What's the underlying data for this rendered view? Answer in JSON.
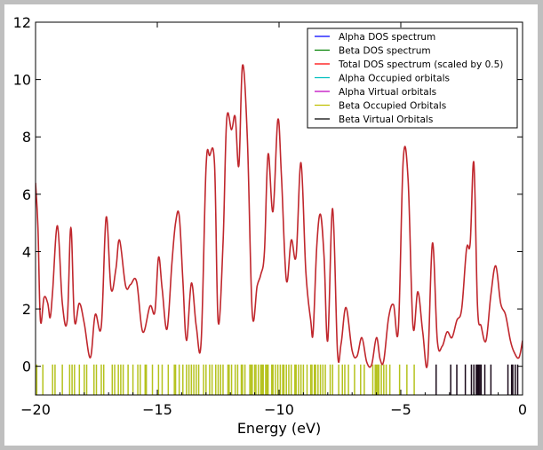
{
  "colors": {
    "window_background": "#bfbfbf",
    "figure_background": "#ffffff",
    "total_dos": "#c0272d",
    "beta_occupied": "#b5c21d",
    "beta_virtual": "#1a0a1a"
  },
  "chart_data": {
    "type": "line",
    "title": "",
    "xlabel": "Energy (eV)",
    "ylabel": "",
    "xlim": [
      -20,
      0
    ],
    "ylim": [
      -1,
      12
    ],
    "xticks": [
      -20,
      -15,
      -10,
      -5,
      0
    ],
    "xtick_labels": [
      "−20",
      "−15",
      "−10",
      "−5",
      "0"
    ],
    "yticks": [
      0,
      2,
      4,
      6,
      8,
      10,
      12
    ],
    "ytick_labels": [
      "0",
      "2",
      "4",
      "6",
      "8",
      "10",
      "12"
    ],
    "grid": false,
    "legend_position": "top-right",
    "legend": [
      {
        "label": "Alpha DOS spectrum",
        "color": "#0000ff"
      },
      {
        "label": "Beta DOS spectrum",
        "color": "#008000"
      },
      {
        "label": "Total DOS spectrum (scaled by 0.5)",
        "color": "#ff0000"
      },
      {
        "label": "Alpha Occupied orbitals",
        "color": "#00bfbf"
      },
      {
        "label": "Alpha Virtual orbitals",
        "color": "#bf00bf"
      },
      {
        "label": "Beta Occupied Orbitals",
        "color": "#bfbf00"
      },
      {
        "label": "Beta Virtual Orbitals",
        "color": "#000000"
      }
    ],
    "series": [
      {
        "name": "Total DOS spectrum (scaled by 0.5)",
        "color": "#c0272d",
        "x": [
          -20.0,
          -19.9,
          -19.8,
          -19.65,
          -19.5,
          -19.4,
          -19.3,
          -19.1,
          -18.9,
          -18.7,
          -18.55,
          -18.4,
          -18.2,
          -18.0,
          -17.75,
          -17.55,
          -17.3,
          -17.1,
          -16.9,
          -16.7,
          -16.55,
          -16.3,
          -16.1,
          -15.85,
          -15.6,
          -15.3,
          -15.1,
          -14.95,
          -14.8,
          -14.6,
          -14.4,
          -14.25,
          -14.1,
          -13.95,
          -13.8,
          -13.6,
          -13.4,
          -13.2,
          -13.0,
          -12.85,
          -12.65,
          -12.5,
          -12.3,
          -12.15,
          -11.95,
          -11.8,
          -11.65,
          -11.5,
          -11.3,
          -11.1,
          -10.9,
          -10.75,
          -10.6,
          -10.45,
          -10.25,
          -10.05,
          -9.9,
          -9.7,
          -9.5,
          -9.3,
          -9.1,
          -8.9,
          -8.7,
          -8.6,
          -8.45,
          -8.3,
          -8.15,
          -8.0,
          -7.8,
          -7.6,
          -7.45,
          -7.25,
          -7.0,
          -6.8,
          -6.6,
          -6.4,
          -6.2,
          -6.0,
          -5.85,
          -5.7,
          -5.5,
          -5.3,
          -5.1,
          -4.9,
          -4.7,
          -4.5,
          -4.3,
          -4.1,
          -3.9,
          -3.7,
          -3.5,
          -3.3,
          -3.1,
          -2.9,
          -2.7,
          -2.5,
          -2.3,
          -2.15,
          -2.0,
          -1.85,
          -1.7,
          -1.5,
          -1.3,
          -1.1,
          -0.9,
          -0.7,
          -0.5,
          -0.35,
          -0.15,
          0.0
        ],
        "y": [
          6.4,
          4.8,
          1.6,
          2.4,
          2.2,
          1.7,
          2.6,
          4.9,
          2.2,
          1.6,
          4.85,
          1.6,
          2.2,
          1.5,
          0.3,
          1.8,
          1.4,
          5.2,
          2.7,
          3.4,
          4.4,
          2.8,
          2.85,
          2.95,
          1.2,
          2.1,
          1.9,
          3.8,
          2.7,
          1.3,
          3.6,
          5.0,
          5.25,
          3.0,
          0.9,
          2.9,
          1.4,
          0.85,
          6.9,
          7.35,
          7.05,
          1.55,
          4.3,
          8.6,
          8.25,
          8.7,
          7.0,
          10.5,
          7.9,
          1.85,
          2.8,
          3.2,
          4.0,
          7.4,
          5.4,
          8.6,
          6.6,
          3.0,
          4.4,
          3.85,
          7.1,
          3.3,
          1.6,
          1.2,
          4.2,
          5.3,
          3.8,
          0.9,
          5.5,
          0.5,
          0.8,
          2.05,
          0.55,
          0.35,
          1.0,
          0.15,
          0.05,
          1.0,
          0.25,
          0.2,
          1.7,
          2.15,
          1.3,
          7.2,
          6.5,
          1.4,
          2.6,
          1.2,
          0.1,
          4.3,
          0.9,
          0.7,
          1.2,
          1.0,
          1.6,
          2.0,
          4.1,
          4.3,
          7.1,
          2.1,
          1.4,
          0.9,
          2.5,
          3.5,
          2.2,
          1.8,
          0.9,
          0.5,
          0.3,
          0.9
        ],
        "note": "hidden-not-used"
      }
    ],
    "orbital_series": [
      {
        "name": "Beta Occupied Orbitals",
        "color": "#b5c21d",
        "x": [
          -19.95,
          -19.7,
          -19.3,
          -19.2,
          -18.9,
          -18.6,
          -18.5,
          -18.4,
          -18.2,
          -18.0,
          -17.9,
          -17.6,
          -17.5,
          -17.3,
          -17.2,
          -16.85,
          -16.75,
          -16.6,
          -16.5,
          -16.4,
          -16.2,
          -16.0,
          -15.8,
          -15.7,
          -15.5,
          -15.45,
          -15.2,
          -14.95,
          -14.8,
          -14.55,
          -14.3,
          -14.25,
          -14.1,
          -13.95,
          -13.8,
          -13.7,
          -13.6,
          -13.5,
          -13.4,
          -13.3,
          -13.1,
          -13.0,
          -12.85,
          -12.75,
          -12.6,
          -12.5,
          -12.4,
          -12.3,
          -12.1,
          -12.05,
          -11.95,
          -11.8,
          -11.7,
          -11.55,
          -11.5,
          -11.4,
          -11.2,
          -11.15,
          -11.1,
          -11.0,
          -10.95,
          -10.85,
          -10.75,
          -10.7,
          -10.65,
          -10.55,
          -10.5,
          -10.45,
          -10.3,
          -10.25,
          -10.15,
          -10.05,
          -9.95,
          -9.85,
          -9.8,
          -9.7,
          -9.6,
          -9.5,
          -9.35,
          -9.3,
          -9.2,
          -9.1,
          -9.0,
          -8.85,
          -8.7,
          -8.65,
          -8.55,
          -8.5,
          -8.4,
          -8.3,
          -8.2,
          -8.1,
          -7.9,
          -7.8,
          -7.55,
          -7.4,
          -7.3,
          -7.15,
          -6.9,
          -6.65,
          -6.5,
          -6.15,
          -6.05,
          -6.0,
          -5.95,
          -5.9,
          -5.8,
          -5.7,
          -5.6,
          -5.45,
          -5.05,
          -4.75,
          -4.45
        ]
      },
      {
        "name": "Beta Virtual Orbitals",
        "color": "#1a0a1a",
        "x": [
          -3.55,
          -2.95,
          -2.7,
          -2.35,
          -2.1,
          -2.0,
          -1.9,
          -1.85,
          -1.8,
          -1.75,
          -1.7,
          -1.55,
          -1.3,
          -0.6,
          -0.45,
          -0.4,
          -0.3,
          -0.2
        ]
      }
    ]
  }
}
